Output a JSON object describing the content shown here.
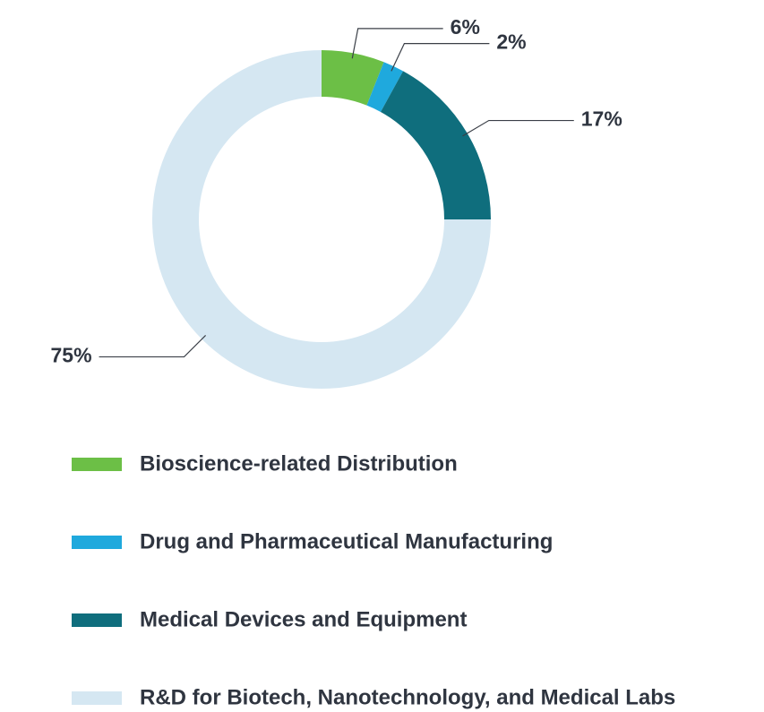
{
  "chart_data": {
    "type": "donut",
    "categories": [
      "Bioscience-related Distribution",
      "Drug and Pharmaceutical Manufacturing",
      "Medical Devices and Equipment",
      "R&D for Biotech, Nanotechnology, and Medical Labs"
    ],
    "values": [
      6,
      2,
      17,
      75
    ],
    "value_labels": [
      "6%",
      "2%",
      "17%",
      "75%"
    ],
    "colors": [
      "#6cbf46",
      "#1fa9dd",
      "#0f6e7d",
      "#d5e7f2"
    ]
  }
}
